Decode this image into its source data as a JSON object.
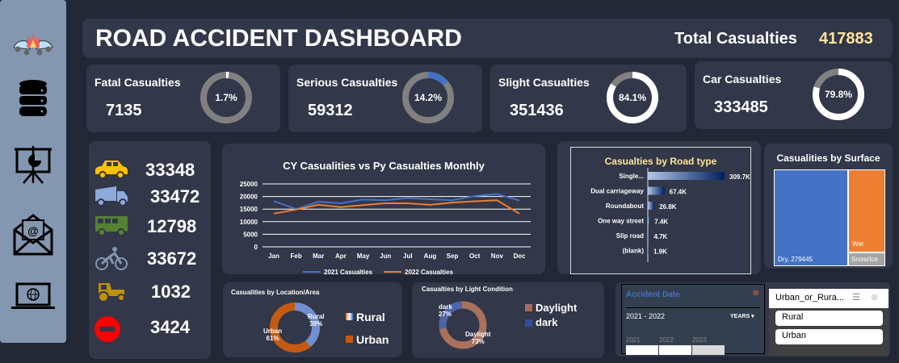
{
  "header": {
    "title": "ROAD ACCIDENT DASHBOARD",
    "total_label": "Total Casualties",
    "total_value": "417883"
  },
  "colors": {
    "gold": "#ffe699",
    "blue": "#4472c4",
    "orange": "#ed7d31",
    "sidebar": "#8497b0"
  },
  "sidebar": {
    "icons": [
      "car-crash-icon",
      "database-icon",
      "presentation-icon",
      "email-icon",
      "laptop-globe-icon"
    ]
  },
  "kpis": [
    {
      "label": "Fatal Casualties",
      "value": "7135",
      "pct_label": "1.7%",
      "pct": 1.7
    },
    {
      "label": "Serious Casualties",
      "value": "59312",
      "pct_label": "14.2%",
      "pct": 14.2
    },
    {
      "label": "Slight Casualties",
      "value": "351436",
      "pct_label": "84.1%",
      "pct": 84.1
    },
    {
      "label": "Car Casualties",
      "value": "333485",
      "pct_label": "79.8%",
      "pct": 79.8
    }
  ],
  "vehicles": [
    {
      "icon": "car-icon",
      "value": "33348"
    },
    {
      "icon": "truck-icon",
      "value": "33472"
    },
    {
      "icon": "bus-icon",
      "value": "12798"
    },
    {
      "icon": "bicycle-icon",
      "value": "33672"
    },
    {
      "icon": "tractor-icon",
      "value": "1032"
    },
    {
      "icon": "other-vehicle-icon",
      "value": "3424"
    }
  ],
  "chart_data": [
    {
      "type": "line",
      "title": "CY Casualities vs  Py Casualties Monthly",
      "categories": [
        "Jan",
        "Feb",
        "Mar",
        "Apr",
        "May",
        "Jun",
        "Jul",
        "Aug",
        "Sep",
        "Oct",
        "Nov",
        "Dec"
      ],
      "yticks": [
        "0",
        "5000",
        "10000",
        "15000",
        "20000",
        "25000"
      ],
      "ylim": [
        0,
        25000
      ],
      "grid": true,
      "legend": "bottom",
      "series": [
        {
          "name": "2021 Casualties",
          "color": "#4472c4",
          "values": [
            18200,
            15000,
            17900,
            17300,
            18800,
            18500,
            19400,
            18900,
            18500,
            20200,
            21000,
            18400
          ]
        },
        {
          "name": "2022 Casualties",
          "color": "#ed7d31",
          "values": [
            13200,
            14800,
            16700,
            15800,
            16600,
            17300,
            17300,
            16700,
            17600,
            18100,
            18500,
            13200
          ]
        }
      ]
    },
    {
      "type": "bar",
      "orientation": "horizontal",
      "title": "Casualties by Road type",
      "categories": [
        "Single...",
        "Dual carriageway",
        "Roundabout",
        "One way street",
        "Slip road",
        "(blank)"
      ],
      "values": [
        309.7,
        67.4,
        26.8,
        7.4,
        4.7,
        1.9
      ],
      "labels": [
        "309.7K",
        "67.4K",
        "26.8K",
        "7.4K",
        "4.7K",
        "1.9K"
      ]
    },
    {
      "type": "treemap",
      "title": "Casualities by Surface",
      "items": [
        {
          "label": "Dry, 279445",
          "color": "#4472c4"
        },
        {
          "label": "Wet",
          "color": "#ed7d31"
        },
        {
          "label": "Snow/Ice",
          "color": "#a5a5a5"
        }
      ]
    },
    {
      "type": "pie",
      "title": "Casualities by Location/Area",
      "slices": [
        {
          "name": "Rural",
          "value": 39,
          "label": "Rural\n39%"
        },
        {
          "name": "Urban",
          "value": 61,
          "label": "Urban\n61%"
        }
      ],
      "data_labels": {
        "rural": "Rural",
        "rural_pct": "39%",
        "urban": "Urban",
        "urban_pct": "61%"
      },
      "legend": [
        "Rural",
        "Urban"
      ]
    },
    {
      "type": "pie",
      "title": "Casualties by Light Condition",
      "slices": [
        {
          "name": "Daylight",
          "value": 73
        },
        {
          "name": "dark",
          "value": 27
        }
      ],
      "data_labels": {
        "dark": "dark",
        "dark_pct": "27%",
        "day": "Daylight",
        "day_pct": "73%"
      },
      "legend": [
        "Daylight",
        "dark"
      ]
    }
  ],
  "date_slicer": {
    "title": "Accident Date",
    "range": "2021 - 2022",
    "level": "YEARS",
    "years": [
      "2021",
      "2022",
      "2023"
    ]
  },
  "area_slicer": {
    "title": "Urban_or_Rura...",
    "options": [
      "Rural",
      "Urban"
    ]
  }
}
